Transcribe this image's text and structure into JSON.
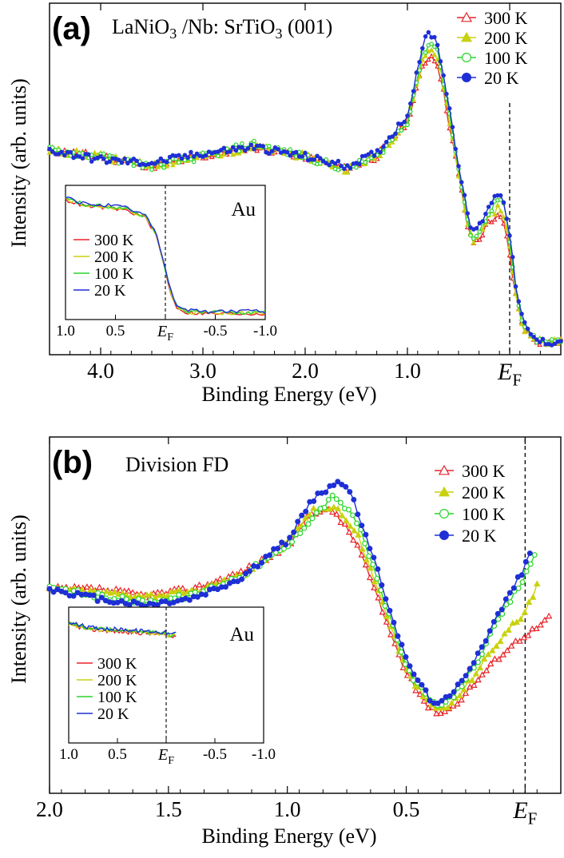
{
  "figure": {
    "panels": [
      {
        "id": "a",
        "panel_label": "(a)",
        "title_main": "LaNiO",
        "title_sub1": "3",
        "title_mid": " /Nb: SrTiO",
        "title_sub2": "3",
        "title_end": " (001)",
        "xlabel": "Binding Energy (eV)",
        "ylabel": "Intensity (arb. units)",
        "ef_label": "E",
        "ef_sub": "F"
      },
      {
        "id": "b",
        "panel_label": "(b)",
        "title_text": "Division FD",
        "xlabel": "Binding Energy (eV)",
        "ylabel": "Intensity (arb. units)",
        "ef_label": "E",
        "ef_sub": "F"
      }
    ],
    "inset_title": "Au"
  },
  "colors": {
    "300 K": "#e8232a",
    "200 K": "#c9d10f",
    "100 K": "#2bd42b",
    "20 K": "#1f2fd6",
    "axis": "#000000"
  },
  "chart_data": [
    {
      "type": "line",
      "panel": "a",
      "title": "LaNiO3 /Nb: SrTiO3 (001)",
      "xlabel": "Binding Energy (eV)",
      "ylabel": "Intensity (arb. units)",
      "xlim": [
        4.5,
        -0.5
      ],
      "x_reversed": true,
      "ylim": [
        0,
        100
      ],
      "x_ticks": [
        {
          "v": 4.0,
          "label": "4.0"
        },
        {
          "v": 3.0,
          "label": "3.0"
        },
        {
          "v": 2.0,
          "label": "2.0"
        },
        {
          "v": 1.0,
          "label": "1.0"
        },
        {
          "v": 0.0,
          "label": "E_F"
        }
      ],
      "fermi_line": 0.0,
      "legend": {
        "position": "top-right",
        "entries": [
          "300 K",
          "200 K",
          "100 K",
          "20 K"
        ],
        "markers": [
          "open-triangle",
          "filled-triangle",
          "open-circle",
          "filled-circle"
        ]
      },
      "series": [
        {
          "name": "300 K",
          "marker": "open-triangle",
          "x": [
            4.5,
            4.0,
            3.5,
            3.0,
            2.5,
            2.0,
            1.6,
            1.3,
            1.0,
            0.85,
            0.78,
            0.7,
            0.6,
            0.5,
            0.4,
            0.35,
            0.3,
            0.2,
            0.1,
            0.05,
            0.0,
            -0.05,
            -0.1,
            -0.15,
            -0.2,
            -0.3,
            -0.5
          ],
          "y": [
            61,
            59,
            56,
            59,
            62,
            59,
            55,
            59,
            70,
            87,
            91,
            88,
            71,
            53,
            35,
            32,
            33,
            39,
            40,
            37,
            28,
            17,
            9,
            5,
            3,
            1,
            1
          ]
        },
        {
          "name": "200 K",
          "marker": "filled-triangle",
          "x": [
            4.5,
            4.0,
            3.5,
            3.0,
            2.5,
            2.0,
            1.6,
            1.3,
            1.0,
            0.85,
            0.78,
            0.7,
            0.6,
            0.5,
            0.4,
            0.35,
            0.3,
            0.2,
            0.1,
            0.05,
            0.0,
            -0.05,
            -0.1,
            -0.15,
            -0.2,
            -0.3,
            -0.5
          ],
          "y": [
            61,
            59,
            56,
            59,
            62,
            59,
            55,
            59,
            70,
            89,
            93,
            90,
            72,
            54,
            35,
            33,
            34,
            41,
            43,
            40,
            30,
            18,
            9,
            5,
            3,
            1,
            1
          ]
        },
        {
          "name": "100 K",
          "marker": "open-circle",
          "x": [
            4.5,
            4.0,
            3.5,
            3.0,
            2.5,
            2.0,
            1.6,
            1.3,
            1.0,
            0.85,
            0.78,
            0.7,
            0.6,
            0.5,
            0.4,
            0.35,
            0.3,
            0.2,
            0.1,
            0.05,
            0.0,
            -0.05,
            -0.1,
            -0.15,
            -0.2,
            -0.3,
            -0.5
          ],
          "y": [
            61,
            59,
            56,
            59,
            63,
            59,
            55,
            59,
            70,
            91,
            95,
            92,
            74,
            55,
            36,
            34,
            35,
            42,
            46,
            43,
            32,
            19,
            10,
            5,
            3,
            1,
            1
          ]
        },
        {
          "name": "20 K",
          "marker": "filled-circle",
          "x": [
            4.5,
            4.0,
            3.5,
            3.0,
            2.5,
            2.0,
            1.6,
            1.3,
            1.0,
            0.85,
            0.78,
            0.7,
            0.6,
            0.5,
            0.4,
            0.35,
            0.3,
            0.2,
            0.1,
            0.05,
            0.0,
            -0.05,
            -0.1,
            -0.15,
            -0.2,
            -0.3,
            -0.5
          ],
          "y": [
            61,
            58,
            57,
            60,
            62,
            59,
            56,
            60,
            72,
            94,
            98,
            94,
            76,
            57,
            38,
            36,
            37,
            44,
            48,
            45,
            34,
            21,
            11,
            6,
            3,
            1,
            1
          ]
        }
      ],
      "inset": {
        "title": "Au",
        "xlim": [
          1.0,
          -1.0
        ],
        "x_ticks": [
          {
            "v": 1.0,
            "label": "1.0"
          },
          {
            "v": 0.5,
            "label": "0.5"
          },
          {
            "v": 0.0,
            "label": "E_F"
          },
          {
            "v": -0.5,
            "label": "-0.5"
          },
          {
            "v": -1.0,
            "label": "-1.0"
          }
        ],
        "legend_entries": [
          "300 K",
          "200 K",
          "100 K",
          "20 K"
        ],
        "x": [
          1.0,
          0.8,
          0.6,
          0.4,
          0.2,
          0.1,
          0.05,
          0.0,
          -0.05,
          -0.1,
          -0.2,
          -0.4,
          -0.7,
          -1.0
        ],
        "y": [
          92,
          87,
          86,
          84,
          78,
          66,
          52,
          36,
          20,
          9,
          4,
          3,
          3,
          3
        ]
      }
    },
    {
      "type": "line",
      "panel": "b",
      "title": "Division FD",
      "xlabel": "Binding Energy (eV)",
      "ylabel": "Intensity (arb. units)",
      "xlim": [
        2.0,
        -0.15
      ],
      "x_reversed": true,
      "ylim": [
        0,
        100
      ],
      "x_ticks": [
        {
          "v": 2.0,
          "label": "2.0"
        },
        {
          "v": 1.5,
          "label": "1.5"
        },
        {
          "v": 1.0,
          "label": "1.0"
        },
        {
          "v": 0.5,
          "label": "0.5"
        },
        {
          "v": 0.0,
          "label": "E_F"
        }
      ],
      "fermi_line": 0.0,
      "legend": {
        "position": "top-right",
        "entries": [
          "300 K",
          "200 K",
          "100 K",
          "20 K"
        ],
        "markers": [
          "open-triangle",
          "filled-triangle",
          "open-circle",
          "filled-circle"
        ]
      },
      "series": [
        {
          "name": "300 K",
          "marker": "open-triangle",
          "x": [
            2.0,
            1.8,
            1.6,
            1.4,
            1.2,
            1.0,
            0.9,
            0.8,
            0.7,
            0.6,
            0.5,
            0.4,
            0.35,
            0.3,
            0.2,
            0.1,
            0.0,
            -0.05,
            -0.1
          ],
          "y": [
            60,
            60,
            58,
            60,
            65,
            73,
            84,
            84,
            73,
            53,
            34,
            23,
            22,
            24,
            32,
            40,
            46,
            48,
            51
          ]
        },
        {
          "name": "200 K",
          "marker": "filled-triangle",
          "x": [
            2.0,
            1.8,
            1.6,
            1.4,
            1.2,
            1.0,
            0.9,
            0.8,
            0.7,
            0.6,
            0.5,
            0.4,
            0.35,
            0.3,
            0.2,
            0.1,
            0.0,
            -0.03,
            -0.05
          ],
          "y": [
            60,
            59,
            58,
            59,
            64,
            74,
            84,
            86,
            76,
            56,
            35,
            24,
            23,
            25,
            35,
            45,
            53,
            57,
            62
          ]
        },
        {
          "name": "100 K",
          "marker": "open-circle",
          "x": [
            2.0,
            1.8,
            1.6,
            1.4,
            1.2,
            1.0,
            0.9,
            0.8,
            0.7,
            0.6,
            0.5,
            0.4,
            0.35,
            0.3,
            0.2,
            0.1,
            0.0,
            -0.02,
            -0.04
          ],
          "y": [
            60,
            58,
            56,
            58,
            64,
            73,
            82,
            89,
            80,
            58,
            36,
            25,
            24,
            27,
            38,
            52,
            64,
            67,
            71
          ]
        },
        {
          "name": "20 K",
          "marker": "filled-circle",
          "x": [
            2.0,
            1.8,
            1.6,
            1.4,
            1.2,
            1.0,
            0.9,
            0.8,
            0.75,
            0.7,
            0.6,
            0.5,
            0.4,
            0.35,
            0.3,
            0.2,
            0.1,
            0.0,
            -0.02
          ],
          "y": [
            60,
            57,
            55,
            57,
            63,
            75,
            87,
            93,
            92,
            83,
            61,
            38,
            26,
            25,
            28,
            40,
            54,
            67,
            71
          ]
        }
      ],
      "inset": {
        "title": "Au",
        "xlim": [
          1.0,
          -1.0
        ],
        "x_ticks": [
          {
            "v": 1.0,
            "label": "1.0"
          },
          {
            "v": 0.5,
            "label": "0.5"
          },
          {
            "v": 0.0,
            "label": "E_F"
          },
          {
            "v": -0.5,
            "label": "-0.5"
          },
          {
            "v": -1.0,
            "label": "-1.0"
          }
        ],
        "legend_entries": [
          "300 K",
          "200 K",
          "100 K",
          "20 K"
        ],
        "x": [
          1.0,
          0.8,
          0.6,
          0.4,
          0.2,
          0.0,
          -0.05,
          -0.1
        ],
        "y": [
          90,
          86,
          85,
          84,
          83,
          82,
          80,
          82
        ]
      }
    }
  ]
}
